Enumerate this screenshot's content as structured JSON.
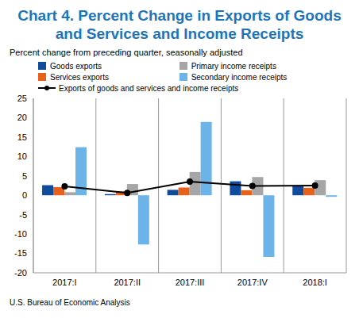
{
  "chart_data": {
    "type": "bar",
    "title": "Chart 4. Percent Change in Exports of Goods and Services and Income Receipts",
    "subtitle": "Percent change from preceding quarter, seasonally adjusted",
    "source": "U.S. Bureau of Economic Analysis",
    "categories": [
      "2017:I",
      "2017:II",
      "2017:III",
      "2017:IV",
      "2018:I"
    ],
    "series": [
      {
        "name": "Goods exports",
        "type": "bar",
        "color": "#0f4c9c",
        "values": [
          2.6,
          0.3,
          1.4,
          3.6,
          2.5
        ]
      },
      {
        "name": "Services exports",
        "type": "bar",
        "color": "#e8611a",
        "values": [
          2.1,
          1.0,
          2.0,
          1.3,
          1.9
        ]
      },
      {
        "name": "Primary income receipts",
        "type": "bar",
        "color": "#a6a6a6",
        "values": [
          0.8,
          2.9,
          6.0,
          4.7,
          3.9
        ]
      },
      {
        "name": "Secondary income receipts",
        "type": "bar",
        "color": "#6cb4e8",
        "values": [
          12.4,
          -12.7,
          18.9,
          -15.9,
          -0.4
        ]
      },
      {
        "name": "Exports of goods and services and income receipts",
        "type": "line",
        "color": "#000000",
        "marker": "circle",
        "values": [
          2.3,
          0.6,
          3.5,
          2.4,
          2.5
        ]
      }
    ],
    "ylim": [
      -20,
      25
    ],
    "yticks": [
      -20,
      -15,
      -10,
      -5,
      0,
      5,
      10,
      15,
      20,
      25
    ],
    "grid": true,
    "legend": "top right"
  }
}
